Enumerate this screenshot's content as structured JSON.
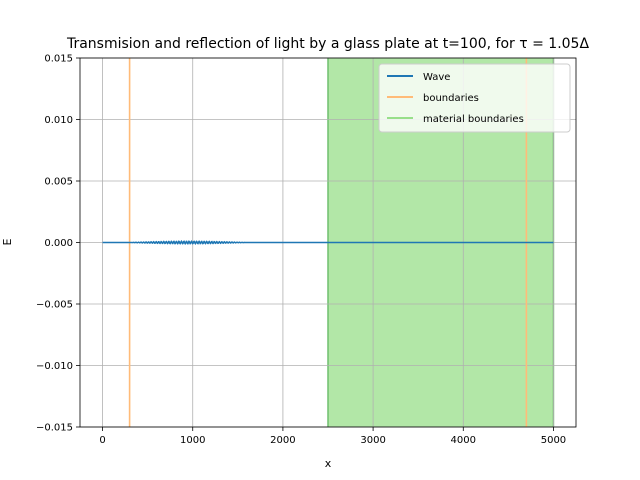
{
  "chart_data": {
    "type": "line",
    "title": "Transmision and reflection of light by a glass plate at t=100, for τ = 1.05Δ",
    "xlabel": "x",
    "ylabel": "E",
    "xlim": [
      -250,
      5250
    ],
    "ylim": [
      -0.015,
      0.015
    ],
    "grid": true,
    "x_ticks": [
      0,
      1000,
      2000,
      3000,
      4000,
      5000
    ],
    "y_ticks": [
      -0.015,
      -0.01,
      -0.005,
      0.0,
      0.005,
      0.01,
      0.015
    ],
    "x_tick_labels": [
      "0",
      "1000",
      "2000",
      "3000",
      "4000",
      "5000"
    ],
    "y_tick_labels": [
      "−0.015",
      "−0.010",
      "−0.005",
      "0.000",
      "0.005",
      "0.010",
      "0.015"
    ],
    "legend_position": "top-right",
    "series": [
      {
        "name": "Wave",
        "color": "#1f77b4",
        "x_range": [
          0,
          5000
        ],
        "oscillation": {
          "x_start": 300,
          "x_end": 1600,
          "amplitude": 0.0001
        }
      },
      {
        "name": "boundaries",
        "color": "#ffbb78",
        "vlines": [
          300,
          4700
        ]
      },
      {
        "name": "material boundaries",
        "color": "#98df8a",
        "span": [
          2500,
          5000
        ]
      }
    ]
  }
}
